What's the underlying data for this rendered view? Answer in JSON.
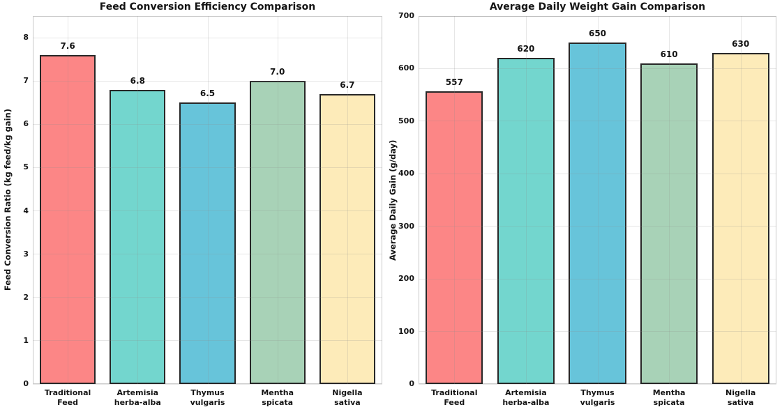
{
  "figure": {
    "background": "#ffffff",
    "grid_color": "#e6e6e6",
    "spine_color": "#c9c9c9",
    "text_color": "#141414"
  },
  "chart_data": [
    {
      "type": "bar",
      "title": "Feed Conversion Efficiency Comparison",
      "xlabel": "",
      "ylabel": "Feed Conversion Ratio (kg feed/kg gain)",
      "categories": [
        "Traditional\nFeed",
        "Artemisia\nherba-alba",
        "Thymus\nvulgaris",
        "Mentha\nspicata",
        "Nigella\nsativa"
      ],
      "values": [
        7.6,
        6.8,
        6.5,
        7.0,
        6.7
      ],
      "bar_labels": [
        "7.6",
        "6.8",
        "6.5",
        "7.0",
        "6.7"
      ],
      "ylim": [
        0,
        8.5
      ],
      "yticks": [
        0,
        1,
        2,
        3,
        4,
        5,
        6,
        7,
        8
      ],
      "grid": true,
      "legend": null,
      "bar_colors": [
        "#FC8686",
        "#73D6CE",
        "#67C4DA",
        "#A8D2B7",
        "#FDEBB9"
      ],
      "bar_edge_color": "#272727"
    },
    {
      "type": "bar",
      "title": "Average Daily Weight Gain Comparison",
      "xlabel": "",
      "ylabel": "Average Daily Gain (g/day)",
      "categories": [
        "Traditional\nFeed",
        "Artemisia\nherba-alba",
        "Thymus\nvulgaris",
        "Mentha\nspicata",
        "Nigella\nsativa"
      ],
      "values": [
        557,
        620,
        650,
        610,
        630
      ],
      "bar_labels": [
        "557",
        "620",
        "650",
        "610",
        "630"
      ],
      "ylim": [
        0,
        700
      ],
      "yticks": [
        0,
        100,
        200,
        300,
        400,
        500,
        600,
        700
      ],
      "grid": true,
      "legend": null,
      "bar_colors": [
        "#FC8686",
        "#73D6CE",
        "#67C4DA",
        "#A8D2B7",
        "#FDEBB9"
      ],
      "bar_edge_color": "#272727"
    }
  ]
}
